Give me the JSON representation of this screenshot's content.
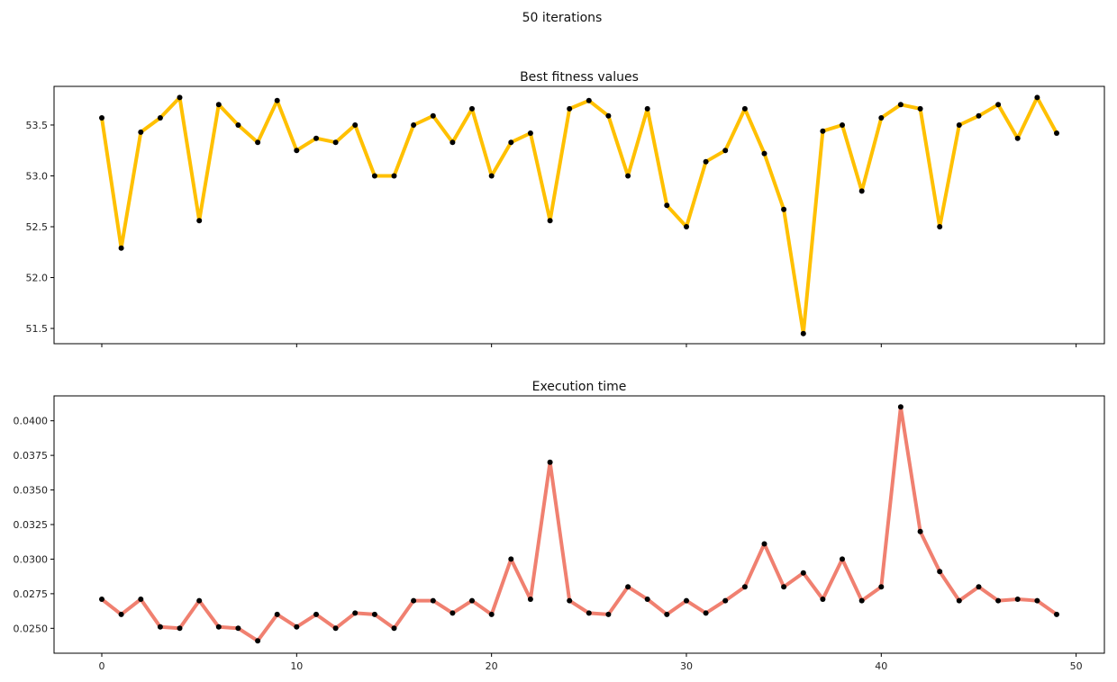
{
  "figure": {
    "suptitle": "50 iterations"
  },
  "chart_data": [
    {
      "type": "line",
      "title": "Best fitness values",
      "xlabel": "",
      "ylabel": "",
      "xlim": [
        -2.45,
        51.45
      ],
      "ylim": [
        51.35,
        53.88
      ],
      "x_ticks": [
        0,
        10,
        20,
        30,
        40,
        50
      ],
      "x_tick_labels_visible": false,
      "y_ticks": [
        51.5,
        52.0,
        52.5,
        53.0,
        53.5
      ],
      "y_tick_labels": [
        "51.5",
        "52.0",
        "52.5",
        "53.0",
        "53.5"
      ],
      "grid": false,
      "line_color": "#ffc000",
      "marker_color": "#000000",
      "series": [
        {
          "x": [
            0,
            1,
            2,
            3,
            4,
            5,
            6,
            7,
            8,
            9,
            10,
            11,
            12,
            13,
            14,
            15,
            16,
            17,
            18,
            19,
            20,
            21,
            22,
            23,
            24,
            25,
            26,
            27,
            28,
            29,
            30,
            31,
            32,
            33,
            34,
            35,
            36,
            37,
            38,
            39,
            40,
            41,
            42,
            43,
            44,
            45,
            46,
            47,
            48,
            49
          ],
          "values": [
            53.57,
            52.29,
            53.43,
            53.57,
            53.77,
            52.56,
            53.7,
            53.5,
            53.33,
            53.74,
            53.25,
            53.37,
            53.33,
            53.5,
            53.0,
            53.0,
            53.5,
            53.59,
            53.33,
            53.66,
            53.0,
            53.33,
            53.42,
            52.56,
            53.66,
            53.74,
            53.59,
            53.0,
            53.66,
            52.71,
            52.5,
            53.14,
            53.25,
            53.66,
            53.22,
            52.67,
            51.45,
            53.44,
            53.5,
            52.85,
            53.57,
            53.7,
            53.66,
            52.5,
            53.5,
            53.59,
            53.7,
            53.37,
            53.77,
            53.42
          ]
        }
      ]
    },
    {
      "type": "line",
      "title": "Execution time",
      "xlabel": "",
      "ylabel": "",
      "xlim": [
        -2.45,
        51.45
      ],
      "ylim": [
        0.0232,
        0.0418
      ],
      "x_ticks": [
        0,
        10,
        20,
        30,
        40,
        50
      ],
      "x_tick_labels": [
        "0",
        "10",
        "20",
        "30",
        "40",
        "50"
      ],
      "y_ticks": [
        0.025,
        0.0275,
        0.03,
        0.0325,
        0.035,
        0.0375,
        0.04
      ],
      "y_tick_labels": [
        "0.0250",
        "0.0275",
        "0.0300",
        "0.0325",
        "0.0350",
        "0.0375",
        "0.0400"
      ],
      "grid": false,
      "line_color": "#f08070",
      "marker_color": "#000000",
      "series": [
        {
          "x": [
            0,
            1,
            2,
            3,
            4,
            5,
            6,
            7,
            8,
            9,
            10,
            11,
            12,
            13,
            14,
            15,
            16,
            17,
            18,
            19,
            20,
            21,
            22,
            23,
            24,
            25,
            26,
            27,
            28,
            29,
            30,
            31,
            32,
            33,
            34,
            35,
            36,
            37,
            38,
            39,
            40,
            41,
            42,
            43,
            44,
            45,
            46,
            47,
            48,
            49
          ],
          "values": [
            0.0271,
            0.026,
            0.0271,
            0.0251,
            0.025,
            0.027,
            0.0251,
            0.025,
            0.0241,
            0.026,
            0.0251,
            0.026,
            0.025,
            0.0261,
            0.026,
            0.025,
            0.027,
            0.027,
            0.0261,
            0.027,
            0.026,
            0.03,
            0.0271,
            0.037,
            0.027,
            0.0261,
            0.026,
            0.028,
            0.0271,
            0.026,
            0.027,
            0.0261,
            0.027,
            0.028,
            0.0311,
            0.028,
            0.029,
            0.0271,
            0.03,
            0.027,
            0.028,
            0.041,
            0.032,
            0.0291,
            0.027,
            0.028,
            0.027,
            0.0271,
            0.027,
            0.026
          ]
        }
      ]
    }
  ]
}
